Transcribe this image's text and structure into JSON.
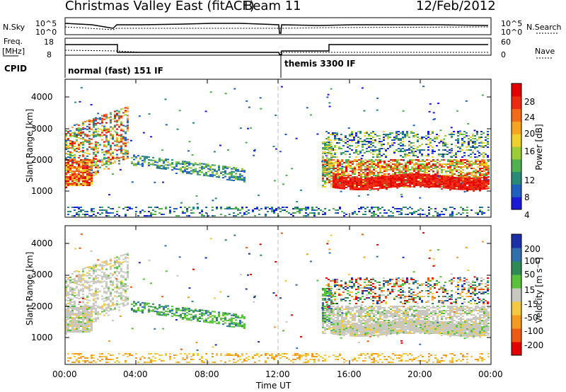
{
  "header": {
    "title": "Christmas Valley East (fitACF)",
    "beam": "Beam 11",
    "date": "12/Feb/2012"
  },
  "ctrl_labels": {
    "nsky": "N.Sky",
    "nsearch": "N.Search",
    "freq": "Freq.",
    "freq_unit": "[MHz]",
    "nave": "Nave",
    "cpid": "CPID",
    "nsky_ticks": [
      "10^5",
      "10^0"
    ],
    "freq_ticks": [
      "18",
      "8"
    ],
    "nave_ticks": [
      "60",
      "0"
    ]
  },
  "cpid_modes": [
    "normal (fast) 151 IF",
    "themis 3300 IF"
  ],
  "chart_data": [
    {
      "type": "heatmap",
      "panel": "power",
      "ylabel": "Slant Range [km]",
      "y_ticks": [
        "1000",
        "2000",
        "3000",
        "4000"
      ],
      "colorbar_label": "Power [dB]",
      "colorbar_ticks": [
        "4",
        "8",
        "12",
        "16",
        "20",
        "24",
        "28"
      ],
      "colorbar_colors": [
        "#1a1ad8",
        "#1f5fc0",
        "#2a8a78",
        "#4fb04f",
        "#9ccc36",
        "#f0d02a",
        "#f8a41e",
        "#f46a17",
        "#ee2a10",
        "#e60000"
      ]
    },
    {
      "type": "heatmap",
      "panel": "velocity",
      "ylabel": "Slant Range [km]",
      "y_ticks": [
        "1000",
        "2000",
        "3000",
        "4000"
      ],
      "colorbar_label": "Velocity [m s⁻¹]",
      "colorbar_ticks": [
        "200",
        "100",
        "50",
        "15",
        "-15",
        "-50",
        "-100",
        "-200"
      ],
      "colorbar_colors": [
        "#1a2fa8",
        "#2f6fae",
        "#2e8a55",
        "#57c23a",
        "#c8c8c0",
        "#f5c842",
        "#f59a1e",
        "#ef5a12",
        "#e20000"
      ]
    }
  ],
  "x_axis": {
    "ticks": [
      "00:00",
      "04:00",
      "08:00",
      "12:00",
      "16:00",
      "20:00",
      "00:00"
    ],
    "label": "Time UT"
  }
}
